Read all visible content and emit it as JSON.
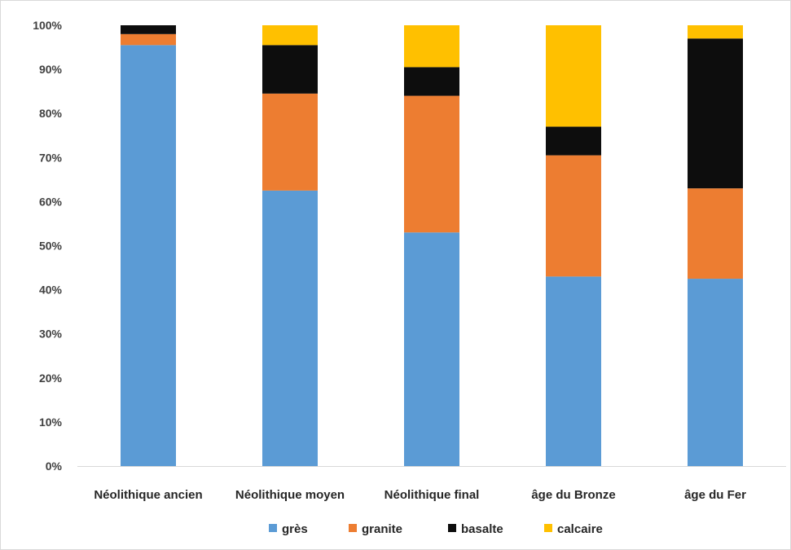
{
  "chart_data": {
    "type": "bar",
    "stacked": true,
    "normalized": true,
    "categories": [
      "Néolithique ancien",
      "Néolithique moyen",
      "Néolithique final",
      "âge du Bronze",
      "âge du Fer"
    ],
    "series": [
      {
        "name": "grès",
        "color": "#5b9bd5",
        "values": [
          95.5,
          62.5,
          53.0,
          43.0,
          42.5
        ]
      },
      {
        "name": "granite",
        "color": "#ed7d31",
        "values": [
          2.5,
          22.0,
          31.0,
          27.5,
          20.5
        ]
      },
      {
        "name": "basalte",
        "color": "#0d0d0d",
        "values": [
          2.0,
          11.0,
          6.5,
          6.5,
          34.0
        ]
      },
      {
        "name": "calcaire",
        "color": "#ffc000",
        "values": [
          0.0,
          4.5,
          9.5,
          23.0,
          3.0
        ]
      }
    ],
    "ylim": [
      0,
      100
    ],
    "yticks": [
      "0%",
      "10%",
      "20%",
      "30%",
      "40%",
      "50%",
      "60%",
      "70%",
      "80%",
      "90%",
      "100%"
    ],
    "grid": false,
    "legend_position": "bottom",
    "title": "",
    "xlabel": "",
    "ylabel": ""
  }
}
